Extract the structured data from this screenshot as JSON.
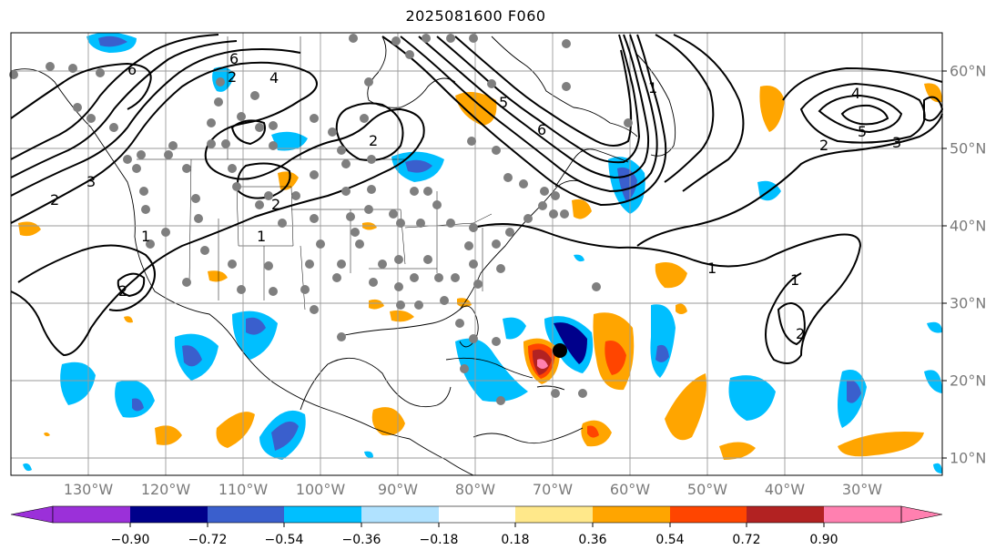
{
  "title": "2025081600 F060",
  "map": {
    "lon_labels": [
      "130°W",
      "120°W",
      "110°W",
      "100°W",
      "90°W",
      "80°W",
      "70°W",
      "60°W",
      "50°W",
      "40°W",
      "30°W"
    ],
    "lat_labels": [
      "60°N",
      "50°N",
      "40°N",
      "30°N",
      "20°N",
      "10°N"
    ],
    "contour_labels": [
      "6",
      "6",
      "4",
      "2",
      "2",
      "1",
      "2",
      "2",
      "3",
      "5",
      "6",
      "1",
      "1",
      "2",
      "3",
      "4",
      "5",
      "2",
      "1",
      "1",
      "2"
    ],
    "storm_marker_color": "#000000",
    "station_color": "#7f7f7f"
  },
  "colorbar": {
    "tick_labels": [
      "−0.90",
      "−0.72",
      "−0.54",
      "−0.36",
      "−0.18",
      "0.18",
      "0.36",
      "0.54",
      "0.72",
      "0.90"
    ],
    "colors": [
      "#9b30d9",
      "#00008b",
      "#3a5fcd",
      "#00bfff",
      "#b0e2ff",
      "#ffffff",
      "#ffe88a",
      "#ffa500",
      "#ff4500",
      "#b22222",
      "#ff80b0"
    ]
  }
}
